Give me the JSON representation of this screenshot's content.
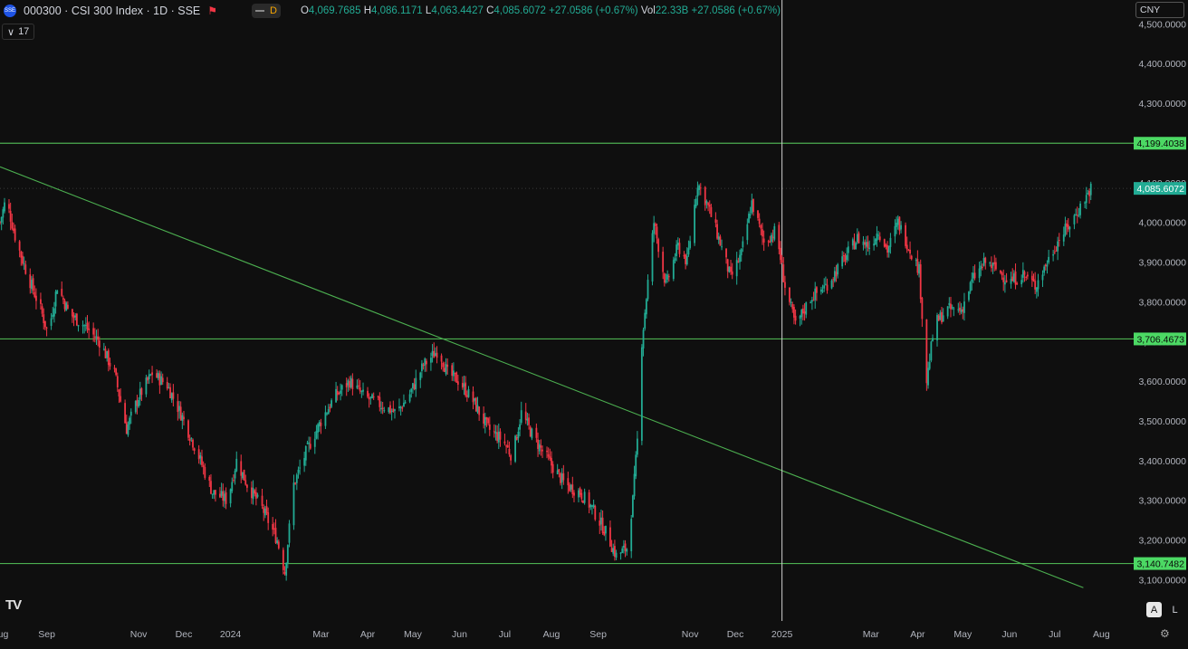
{
  "header": {
    "symbol_title": "000300 · CSI 300 Index · 1D · SSE",
    "exchange_badge": "SSE",
    "flag_icon": "flag-icon",
    "pill_letter": "D",
    "ohlc": {
      "o_label": "O",
      "o_value": "4,069.7685",
      "h_label": "H",
      "h_value": "4,086.1171",
      "l_label": "L",
      "l_value": "4,063.4427",
      "c_label": "C",
      "c_value": "4,085.6072",
      "change": "+27.0586 (+0.67%)",
      "vol_label": "Vol",
      "vol_value": "22.33B",
      "vol_change": "+27.0586 (+0.67%)"
    }
  },
  "indicator": {
    "collapse_icon": "chevron-down-icon",
    "count": "17"
  },
  "currency": "CNY",
  "buttons": {
    "auto": "A",
    "log": "L"
  },
  "logo": "TV",
  "colors": {
    "background": "#0f0f0f",
    "up": "#22ab94",
    "down": "#f23645",
    "line": "#4caf50",
    "label_bg": "#4cd964",
    "axis_text": "#b2b5be"
  },
  "chart_data": {
    "type": "candlestick",
    "y_axis": {
      "min": 3060,
      "max": 4510,
      "ticks": [
        3100,
        3200,
        3300,
        3400,
        3500,
        3600,
        3700,
        3800,
        3900,
        4000,
        4100,
        4200,
        4300,
        4400,
        4500
      ],
      "tick_labels": [
        "3,100.0000",
        "3,200.0000",
        "3,300.0000",
        "3,400.0000",
        "3,500.0000",
        "3,600.0000",
        "3,700.0000",
        "3,800.0000",
        "3,900.0000",
        "4,000.0000",
        "4,100.0000",
        "4,200.0000",
        "4,300.0000",
        "4,400.0000",
        "4,500.0000"
      ]
    },
    "x_axis": {
      "start": "2023-08-01",
      "end": "2025-08-20",
      "tick_dates": [
        "2023-08-01",
        "2023-09-01",
        "2023-11-01",
        "2023-12-01",
        "2024-01-01",
        "2024-03-01",
        "2024-04-01",
        "2024-05-01",
        "2024-06-01",
        "2024-07-01",
        "2024-08-01",
        "2024-09-01",
        "2024-11-01",
        "2024-12-01",
        "2025-01-01",
        "2025-03-01",
        "2025-04-01",
        "2025-05-01",
        "2025-06-01",
        "2025-07-01",
        "2025-08-01"
      ],
      "tick_labels": [
        "Aug",
        "Sep",
        "Nov",
        "Dec",
        "2024",
        "Mar",
        "Apr",
        "May",
        "Jun",
        "Jul",
        "Aug",
        "Sep",
        "Nov",
        "Dec",
        "2025",
        "Mar",
        "Apr",
        "May",
        "Jun",
        "Jul",
        "Aug"
      ]
    },
    "path": [
      [
        "2023-08-01",
        4000
      ],
      [
        "2023-08-05",
        4060
      ],
      [
        "2023-08-12",
        3950
      ],
      [
        "2023-08-20",
        3860
      ],
      [
        "2023-08-28",
        3780
      ],
      [
        "2023-09-02",
        3720
      ],
      [
        "2023-09-08",
        3840
      ],
      [
        "2023-09-16",
        3770
      ],
      [
        "2023-09-26",
        3740
      ],
      [
        "2023-10-06",
        3700
      ],
      [
        "2023-10-16",
        3620
      ],
      [
        "2023-10-24",
        3480
      ],
      [
        "2023-11-01",
        3560
      ],
      [
        "2023-11-10",
        3620
      ],
      [
        "2023-11-20",
        3590
      ],
      [
        "2023-11-30",
        3510
      ],
      [
        "2023-12-10",
        3420
      ],
      [
        "2023-12-20",
        3320
      ],
      [
        "2023-12-30",
        3300
      ],
      [
        "2024-01-05",
        3400
      ],
      [
        "2024-01-12",
        3340
      ],
      [
        "2024-01-22",
        3280
      ],
      [
        "2024-02-01",
        3200
      ],
      [
        "2024-02-06",
        3120
      ],
      [
        "2024-02-12",
        3340
      ],
      [
        "2024-02-20",
        3420
      ],
      [
        "2024-03-01",
        3500
      ],
      [
        "2024-03-10",
        3560
      ],
      [
        "2024-03-20",
        3600
      ],
      [
        "2024-03-30",
        3560
      ],
      [
        "2024-04-10",
        3540
      ],
      [
        "2024-04-20",
        3520
      ],
      [
        "2024-04-28",
        3560
      ],
      [
        "2024-05-08",
        3640
      ],
      [
        "2024-05-18",
        3680
      ],
      [
        "2024-05-24",
        3620
      ],
      [
        "2024-06-01",
        3600
      ],
      [
        "2024-06-10",
        3550
      ],
      [
        "2024-06-20",
        3480
      ],
      [
        "2024-06-30",
        3450
      ],
      [
        "2024-07-06",
        3410
      ],
      [
        "2024-07-12",
        3520
      ],
      [
        "2024-07-20",
        3460
      ],
      [
        "2024-07-30",
        3400
      ],
      [
        "2024-08-10",
        3340
      ],
      [
        "2024-08-20",
        3320
      ],
      [
        "2024-08-28",
        3280
      ],
      [
        "2024-09-06",
        3220
      ],
      [
        "2024-09-13",
        3160
      ],
      [
        "2024-09-20",
        3180
      ],
      [
        "2024-09-24",
        3300
      ],
      [
        "2024-09-27",
        3450
      ],
      [
        "2024-09-30",
        3700
      ],
      [
        "2024-10-08",
        4000
      ],
      [
        "2024-10-10",
        3960
      ],
      [
        "2024-10-16",
        3840
      ],
      [
        "2024-10-24",
        3940
      ],
      [
        "2024-10-30",
        3900
      ],
      [
        "2024-11-06",
        4100
      ],
      [
        "2024-11-12",
        4050
      ],
      [
        "2024-11-20",
        3960
      ],
      [
        "2024-11-28",
        3860
      ],
      [
        "2024-12-05",
        3920
      ],
      [
        "2024-12-12",
        4050
      ],
      [
        "2024-12-20",
        3950
      ],
      [
        "2024-12-28",
        3980
      ],
      [
        "2025-01-03",
        3840
      ],
      [
        "2025-01-10",
        3740
      ],
      [
        "2025-01-20",
        3810
      ],
      [
        "2025-01-30",
        3840
      ],
      [
        "2025-02-10",
        3900
      ],
      [
        "2025-02-20",
        3960
      ],
      [
        "2025-02-28",
        3940
      ],
      [
        "2025-03-06",
        3980
      ],
      [
        "2025-03-12",
        3930
      ],
      [
        "2025-03-19",
        4000
      ],
      [
        "2025-03-26",
        3940
      ],
      [
        "2025-04-02",
        3880
      ],
      [
        "2025-04-07",
        3600
      ],
      [
        "2025-04-12",
        3740
      ],
      [
        "2025-04-20",
        3780
      ],
      [
        "2025-04-30",
        3780
      ],
      [
        "2025-05-08",
        3860
      ],
      [
        "2025-05-16",
        3900
      ],
      [
        "2025-05-24",
        3880
      ],
      [
        "2025-06-01",
        3850
      ],
      [
        "2025-06-10",
        3870
      ],
      [
        "2025-06-18",
        3840
      ],
      [
        "2025-06-26",
        3900
      ],
      [
        "2025-07-04",
        3960
      ],
      [
        "2025-07-12",
        4000
      ],
      [
        "2025-07-18",
        4040
      ],
      [
        "2025-07-25",
        4085.6
      ]
    ],
    "horizontal_levels": [
      {
        "value": 4199.4038,
        "label": "4,199.4038"
      },
      {
        "value": 3706.4673,
        "label": "3,706.4673"
      },
      {
        "value": 3140.7482,
        "label": "3,140.7482"
      }
    ],
    "last_price": {
      "value": 4085.6072,
      "label": "4,085.6072"
    },
    "trendline": {
      "from": [
        "2023-08-01",
        4140
      ],
      "to": [
        "2025-07-20",
        3080
      ]
    },
    "crosshair_date": "2025-01-01",
    "grid": false
  }
}
